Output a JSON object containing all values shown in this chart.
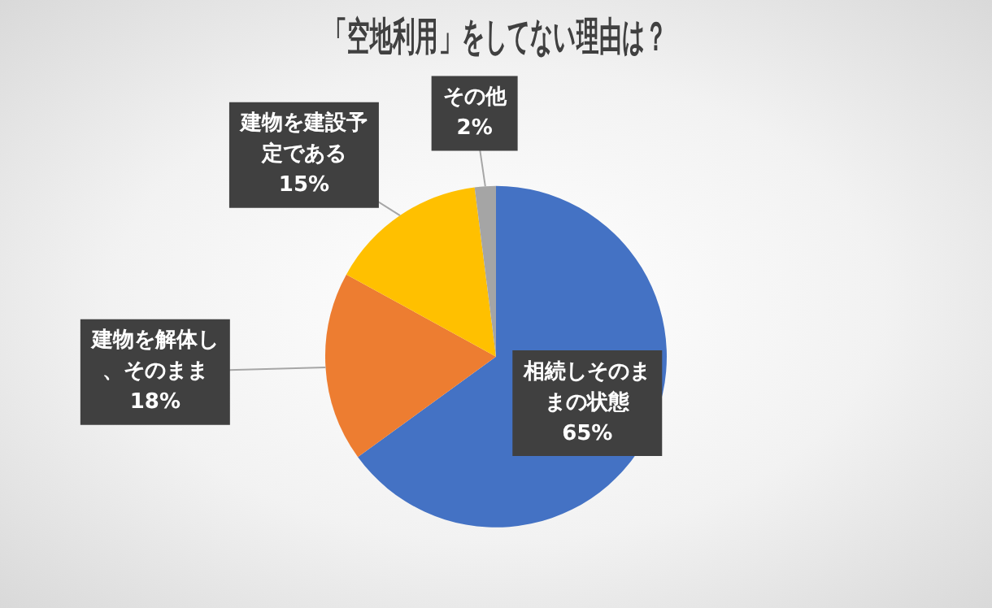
{
  "chart_data": {
    "type": "pie",
    "title": "「空地利用」をしてない理由は？",
    "categories": [
      "相続しそのままの状態",
      "建物を解体し、そのまま",
      "建物を建設予定である",
      "その他"
    ],
    "values": [
      65,
      18,
      15,
      2
    ],
    "colors": [
      "#4472c4",
      "#ed7d31",
      "#ffc000",
      "#a5a5a5"
    ],
    "value_labels": [
      "65%",
      "18%",
      "15%",
      "2%"
    ],
    "legend": false
  }
}
